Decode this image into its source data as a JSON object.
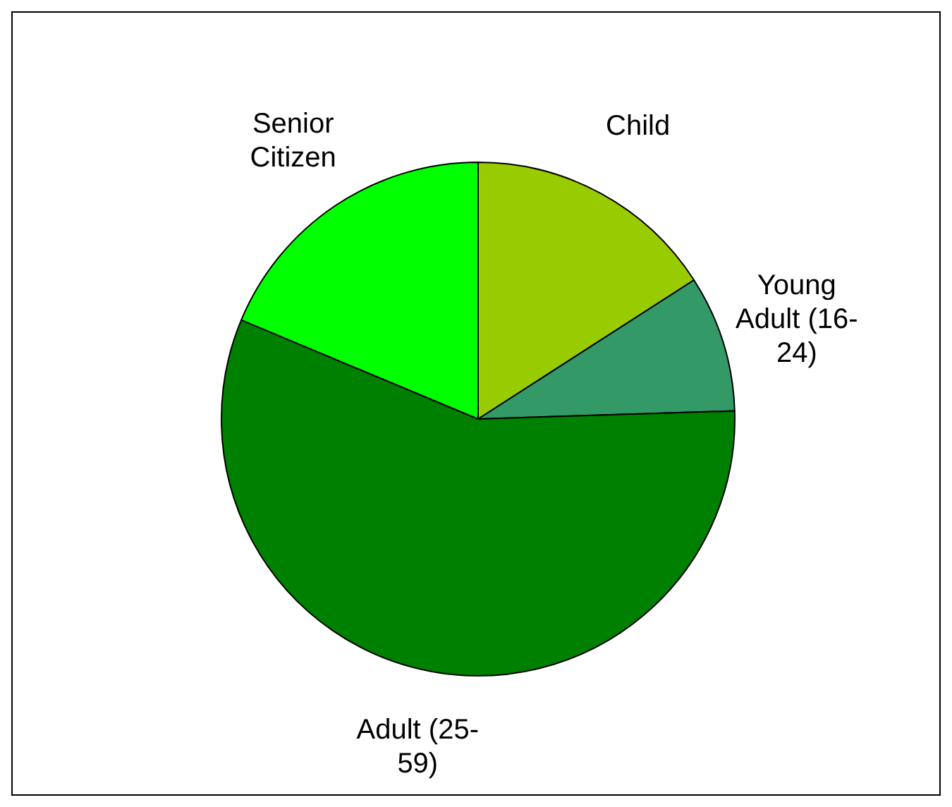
{
  "chart_data": {
    "type": "pie",
    "categories": [
      "Child",
      "Young Adult (16-24)",
      "Adult (25-59)",
      "Senior Citizen"
    ],
    "values": [
      15.9,
      8.6,
      56.8,
      18.7
    ],
    "colors": [
      "#99cc00",
      "#339966",
      "#008000",
      "#00ff00"
    ]
  }
}
